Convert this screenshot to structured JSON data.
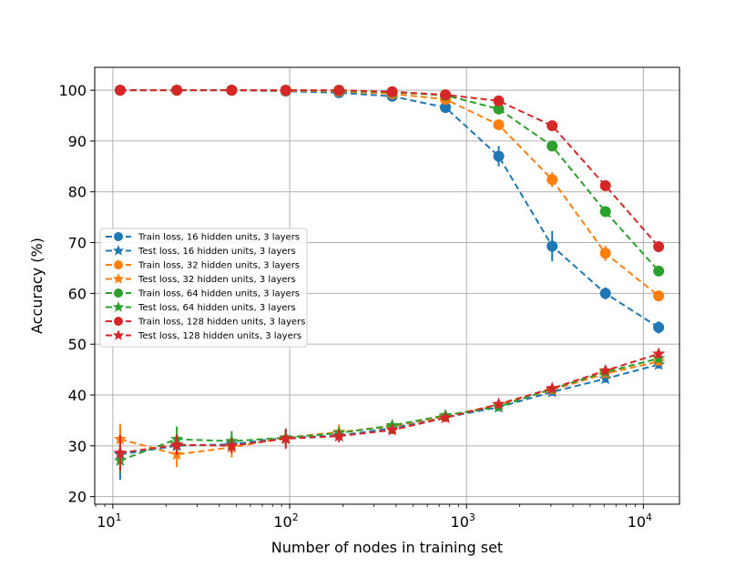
{
  "chart_data": {
    "type": "line",
    "xscale": "log",
    "xlabel": "Number of nodes in training set",
    "ylabel": "Accuracy (%)",
    "xlim": [
      7.9,
      16000
    ],
    "ylim": [
      18.5,
      104.5
    ],
    "grid": true,
    "legend_position": "center-left",
    "x_ticks": [
      {
        "value": 10,
        "base": "10",
        "exp": "1"
      },
      {
        "value": 100,
        "base": "10",
        "exp": "2"
      },
      {
        "value": 1000,
        "base": "10",
        "exp": "3"
      },
      {
        "value": 10000,
        "base": "10",
        "exp": "4"
      }
    ],
    "y_ticks": [
      20,
      30,
      40,
      50,
      60,
      70,
      80,
      90,
      100
    ],
    "x": [
      11,
      23,
      47,
      95,
      190,
      380,
      760,
      1520,
      3050,
      6100,
      12200
    ],
    "series": [
      {
        "name": "Train loss, 16 hidden units, 3 layers",
        "color": "#1f77b4",
        "marker": "circle",
        "values": [
          100,
          100,
          100,
          99.8,
          99.5,
          98.8,
          96.6,
          87.0,
          69.3,
          60.0,
          53.3
        ],
        "errors": [
          0,
          0,
          0,
          0.2,
          0.3,
          0.5,
          0.8,
          2.0,
          3.0,
          1.2,
          1.2
        ]
      },
      {
        "name": "Test loss, 16 hidden units, 3 layers",
        "color": "#1f77b4",
        "marker": "star",
        "values": [
          28.3,
          30.0,
          30.3,
          31.6,
          32.0,
          33.5,
          35.6,
          37.6,
          40.6,
          43.2,
          46.0
        ],
        "errors": [
          5.0,
          2.0,
          1.5,
          1.5,
          1.2,
          1.0,
          0.8,
          0.8,
          0.8,
          0.8,
          0.8
        ]
      },
      {
        "name": "Train loss, 32 hidden units, 3 layers",
        "color": "#ff7f0e",
        "marker": "circle",
        "values": [
          100,
          100,
          100,
          99.9,
          99.8,
          99.3,
          98.2,
          93.2,
          82.4,
          67.9,
          59.5
        ],
        "errors": [
          0,
          0,
          0,
          0.1,
          0.2,
          0.3,
          0.5,
          1.0,
          1.5,
          1.5,
          0.8
        ]
      },
      {
        "name": "Test loss, 32 hidden units, 3 layers",
        "color": "#ff7f0e",
        "marker": "star",
        "values": [
          31.3,
          28.3,
          29.7,
          31.6,
          32.7,
          33.8,
          35.8,
          38.1,
          41.0,
          44.2,
          46.6
        ],
        "errors": [
          3.0,
          2.5,
          2.0,
          1.2,
          1.5,
          1.0,
          0.8,
          0.8,
          0.8,
          0.8,
          0.8
        ]
      },
      {
        "name": "Train loss, 64 hidden units, 3 layers",
        "color": "#2ca02c",
        "marker": "circle",
        "values": [
          100,
          100,
          100,
          100,
          99.9,
          99.6,
          99.0,
          96.3,
          89.0,
          76.1,
          64.4
        ],
        "errors": [
          0,
          0,
          0,
          0,
          0.1,
          0.2,
          0.3,
          0.5,
          0.8,
          1.0,
          0.8
        ]
      },
      {
        "name": "Test loss, 64 hidden units, 3 layers",
        "color": "#2ca02c",
        "marker": "star",
        "values": [
          27.1,
          31.3,
          30.9,
          31.6,
          32.5,
          34.0,
          36.0,
          37.7,
          41.2,
          44.5,
          47.2
        ],
        "errors": [
          2.5,
          2.5,
          2.0,
          1.2,
          1.0,
          1.0,
          0.8,
          0.8,
          0.8,
          0.8,
          0.8
        ]
      },
      {
        "name": "Train loss, 128 hidden units, 3 layers",
        "color": "#d62728",
        "marker": "circle",
        "values": [
          100,
          100,
          100,
          100,
          100,
          99.7,
          99.1,
          97.9,
          93.0,
          81.2,
          69.2
        ],
        "errors": [
          0,
          0,
          0,
          0,
          0,
          0.2,
          0.3,
          0.5,
          0.8,
          0.8,
          0.8
        ]
      },
      {
        "name": "Test loss, 128 hidden units, 3 layers",
        "color": "#d62728",
        "marker": "star",
        "values": [
          28.6,
          30.2,
          30.0,
          31.4,
          31.9,
          33.1,
          35.5,
          38.2,
          41.3,
          44.8,
          48.1
        ],
        "errors": [
          3.5,
          2.0,
          1.5,
          2.0,
          1.2,
          0.8,
          0.8,
          0.8,
          0.8,
          0.8,
          0.8
        ]
      }
    ]
  }
}
